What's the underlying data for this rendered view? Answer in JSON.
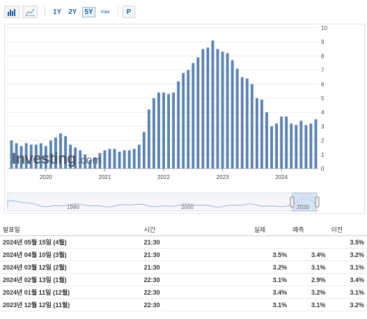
{
  "toolbar": {
    "ranges": [
      "1Y",
      "2Y",
      "5Y",
      "max"
    ],
    "active_range": "5Y",
    "p_label": "P"
  },
  "chart_data": {
    "type": "bar",
    "color": "#5b82b5",
    "ylim": [
      0,
      10
    ],
    "y_ticks": [
      "0",
      "1",
      "2",
      "3",
      "4",
      "5",
      "6",
      "7",
      "8",
      "9",
      "10"
    ],
    "x_ticks": [
      "2020",
      "2021",
      "2022",
      "2023",
      "2024"
    ],
    "values": [
      2.0,
      1.8,
      1.6,
      1.8,
      1.7,
      1.7,
      1.8,
      1.6,
      2.0,
      2.2,
      2.5,
      2.3,
      1.7,
      1.5,
      1.3,
      1.0,
      0.6,
      0.8,
      1.1,
      1.3,
      1.4,
      1.4,
      1.2,
      1.3,
      1.3,
      1.4,
      1.7,
      2.6,
      4.2,
      5.0,
      5.4,
      5.4,
      5.3,
      5.4,
      6.2,
      6.8,
      7.0,
      7.5,
      7.9,
      8.5,
      8.6,
      9.1,
      8.5,
      8.3,
      8.2,
      7.7,
      7.1,
      6.5,
      6.4,
      6.0,
      5.0,
      4.9,
      4.0,
      3.0,
      3.2,
      3.7,
      3.7,
      3.2,
      3.1,
      3.4,
      3.1,
      3.2,
      3.5
    ],
    "navigator": {
      "ticks": [
        "1980",
        "2000",
        "2020"
      ]
    }
  },
  "watermark": {
    "main": "Investing",
    "suffix": ".com"
  },
  "table": {
    "headers": {
      "date": "발표일",
      "time": "시간",
      "actual": "실제",
      "forecast": "예측",
      "previous": "이전"
    },
    "rows": [
      {
        "date": "2024년 05월 15일 (4월)",
        "time": "21:30",
        "actual": "",
        "forecast": "",
        "previous": "3.5%",
        "actual_color": ""
      },
      {
        "date": "2024년 04월 10일 (3월)",
        "time": "21:30",
        "actual": "3.5%",
        "forecast": "3.4%",
        "previous": "3.2%",
        "actual_color": "#d91400"
      },
      {
        "date": "2024년 03월 12일 (2월)",
        "time": "21:30",
        "actual": "3.2%",
        "forecast": "3.1%",
        "previous": "3.1%",
        "actual_color": "#d91400"
      },
      {
        "date": "2024년 02월 13일 (1월)",
        "time": "22:30",
        "actual": "3.1%",
        "forecast": "2.9%",
        "previous": "3.4%",
        "actual_color": "#d91400"
      },
      {
        "date": "2024년 01월 11일 (12월)",
        "time": "22:30",
        "actual": "3.4%",
        "forecast": "3.2%",
        "previous": "3.1%",
        "actual_color": "#d91400"
      },
      {
        "date": "2023년 12월 12일 (11월)",
        "time": "22:30",
        "actual": "3.1%",
        "forecast": "3.1%",
        "previous": "3.2%",
        "actual_color": ""
      }
    ]
  }
}
